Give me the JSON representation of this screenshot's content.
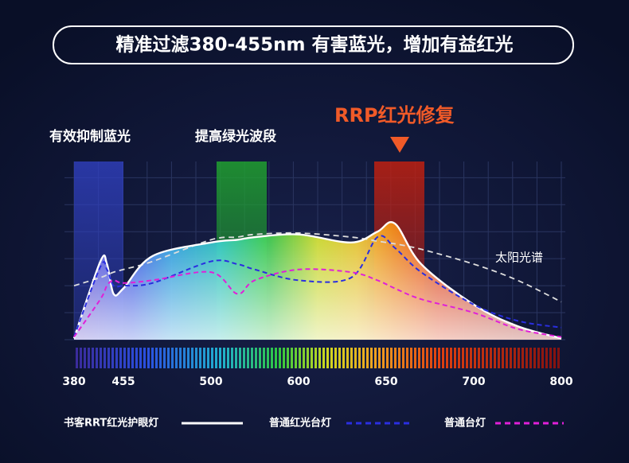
{
  "chart_data": {
    "type": "line",
    "title": "精准过滤380-455nm 有害蓝光，增加有益红光",
    "annotations": [
      "有效抑制蓝光",
      "提高绿光波段",
      "RRP红光修复"
    ],
    "x": [
      380,
      420,
      430,
      440,
      455,
      470,
      500,
      530,
      550,
      600,
      630,
      645,
      655,
      670,
      700,
      750,
      800
    ],
    "xlim": [
      380,
      800
    ],
    "xticks": [
      380,
      455,
      500,
      600,
      650,
      700,
      800
    ],
    "ylim": [
      0,
      6.6
    ],
    "yticks": [
      0,
      1,
      2,
      3,
      4,
      5,
      6
    ],
    "grid": true,
    "reference": {
      "name": "太阳光谱",
      "color": "#dddddd",
      "values": [
        2.0,
        2.3,
        2.4,
        2.5,
        2.6,
        2.9,
        3.7,
        3.8,
        3.9,
        3.95,
        3.8,
        3.65,
        3.55,
        3.35,
        2.8,
        2.2,
        1.4
      ]
    },
    "series": [
      {
        "name": "书客RRT红光护眼灯",
        "color": "#ffffff",
        "dash": false,
        "values": [
          0.05,
          2.9,
          2.8,
          1.7,
          1.9,
          3.1,
          3.6,
          3.7,
          3.8,
          3.9,
          3.6,
          4.0,
          4.3,
          2.8,
          1.3,
          0.5,
          0.05
        ]
      },
      {
        "name": "普通红光台灯",
        "color": "#2a2ee0",
        "dash": true,
        "values": [
          0.1,
          2.7,
          2.6,
          2.0,
          2.0,
          2.1,
          2.9,
          2.8,
          2.6,
          2.2,
          2.3,
          3.8,
          3.4,
          2.5,
          1.3,
          0.7,
          0.45
        ]
      },
      {
        "name": "普通台灯",
        "color": "#e020d8",
        "dash": true,
        "values": [
          0.1,
          1.5,
          2.0,
          2.2,
          2.1,
          2.2,
          2.5,
          1.7,
          2.2,
          2.6,
          2.5,
          2.2,
          1.9,
          1.5,
          1.0,
          0.4,
          0.1
        ]
      }
    ]
  }
}
